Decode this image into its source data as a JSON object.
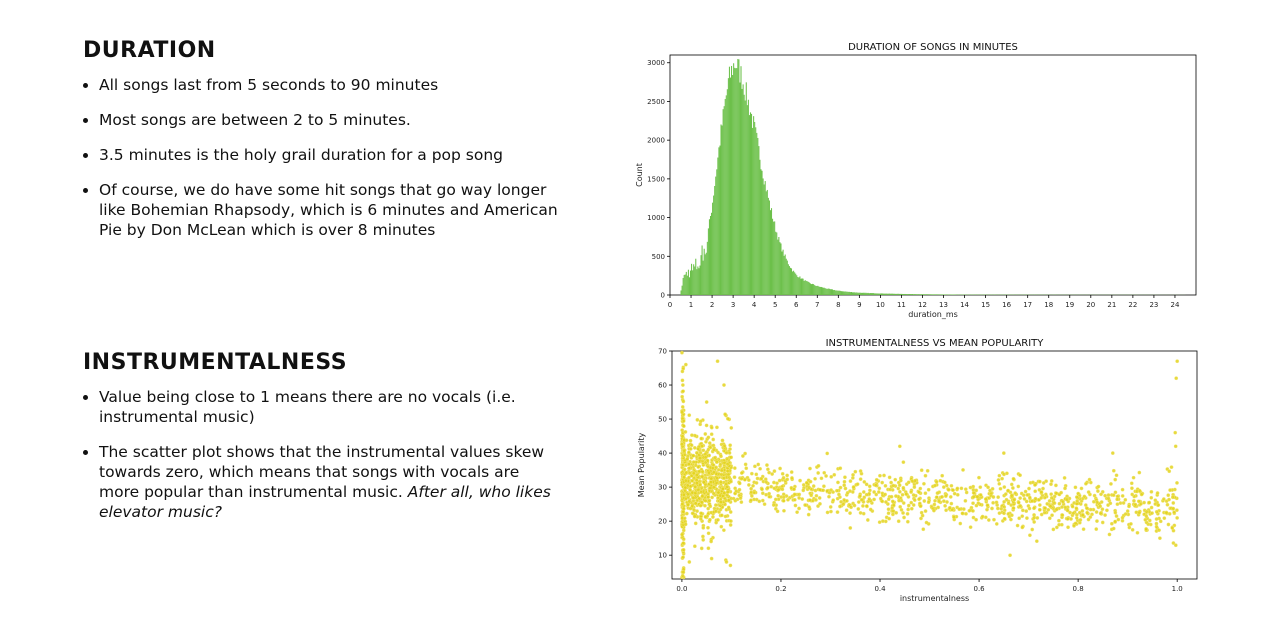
{
  "duration": {
    "heading": "DURATION",
    "bullets": [
      "All songs last from 5 seconds to 90 minutes",
      "Most songs are between 2 to 5 minutes.",
      "3.5 minutes is the holy grail duration for a pop song",
      "Of course, we do have some hit songs that go way longer like Bohemian Rhapsody, which is 6 minutes and American Pie by Don McLean which is over 8 minutes"
    ]
  },
  "instrumentalness": {
    "heading": "INSTRUMENTALNESS",
    "bullets": [
      "Value being close to 1 means there are no vocals (i.e. instrumental music)",
      "The scatter plot shows that the instrumental values skew towards zero, which means that songs with vocals are more popular than instrumental music."
    ],
    "bullet_emphasis": "After all, who likes elevator music?"
  },
  "colors": {
    "histogram_fill": "#6cc04a",
    "scatter_point": "#e3d31c",
    "scatter_edge": "#f4e98a",
    "axis": "#000000"
  },
  "chart_data": [
    {
      "type": "bar",
      "title": "DURATION OF SONGS IN MINUTES",
      "xlabel": "duration_ms",
      "ylabel": "Count",
      "xlim": [
        0,
        25
      ],
      "ylim": [
        0,
        3100
      ],
      "x_ticks": [
        0,
        1,
        2,
        3,
        4,
        5,
        6,
        7,
        8,
        9,
        10,
        11,
        12,
        13,
        14,
        15,
        16,
        17,
        18,
        19,
        20,
        21,
        22,
        23,
        24
      ],
      "y_ticks": [
        0,
        500,
        1000,
        1500,
        2000,
        2500,
        3000
      ],
      "grid": false,
      "shape_points": [
        [
          0.5,
          0
        ],
        [
          0.6,
          200
        ],
        [
          0.8,
          280
        ],
        [
          1.0,
          320
        ],
        [
          1.2,
          350
        ],
        [
          1.4,
          420
        ],
        [
          1.6,
          560
        ],
        [
          1.8,
          800
        ],
        [
          2.0,
          1150
        ],
        [
          2.2,
          1600
        ],
        [
          2.4,
          2050
        ],
        [
          2.6,
          2450
        ],
        [
          2.8,
          2780
        ],
        [
          3.0,
          2950
        ],
        [
          3.1,
          3000
        ],
        [
          3.2,
          2960
        ],
        [
          3.4,
          2830
        ],
        [
          3.6,
          2620
        ],
        [
          3.8,
          2400
        ],
        [
          4.0,
          2170
        ],
        [
          4.2,
          1900
        ],
        [
          4.4,
          1620
        ],
        [
          4.6,
          1350
        ],
        [
          4.8,
          1100
        ],
        [
          5.0,
          880
        ],
        [
          5.2,
          690
        ],
        [
          5.4,
          540
        ],
        [
          5.6,
          420
        ],
        [
          5.8,
          330
        ],
        [
          6.0,
          260
        ],
        [
          6.5,
          170
        ],
        [
          7.0,
          115
        ],
        [
          7.5,
          80
        ],
        [
          8.0,
          55
        ],
        [
          8.5,
          40
        ],
        [
          9.0,
          30
        ],
        [
          10,
          20
        ],
        [
          11,
          14
        ],
        [
          12,
          10
        ],
        [
          13,
          7
        ],
        [
          14,
          5
        ],
        [
          16,
          4
        ],
        [
          18,
          3
        ],
        [
          20,
          2
        ],
        [
          22,
          2
        ],
        [
          24,
          1
        ]
      ]
    },
    {
      "type": "scatter",
      "title": "INSTRUMENTALNESS VS MEAN POPULARITY",
      "xlabel": "instrumentalness",
      "ylabel": "Mean Popularity",
      "xlim": [
        -0.02,
        1.04
      ],
      "ylim": [
        3,
        70
      ],
      "x_ticks": [
        0.0,
        0.2,
        0.4,
        0.6,
        0.8,
        1.0
      ],
      "y_ticks": [
        10,
        20,
        30,
        40,
        50,
        60,
        70
      ],
      "grid": false,
      "clusters": [
        {
          "x_range": [
            0.0,
            0.004
          ],
          "y_mean": 32,
          "y_spread": 14,
          "count": 200
        },
        {
          "x_range": [
            0.004,
            0.1
          ],
          "y_mean": 32,
          "y_spread": 7,
          "count": 650
        },
        {
          "x_range": [
            0.1,
            0.98
          ],
          "y_mean_start": 30,
          "y_mean_end": 23,
          "y_spread": 3.5,
          "count": 950
        },
        {
          "x_range": [
            0.98,
            1.0
          ],
          "y_mean": 25,
          "y_spread": 6,
          "count": 30
        }
      ],
      "outliers": [
        [
          0.001,
          64
        ],
        [
          0.002,
          60
        ],
        [
          0.003,
          5
        ],
        [
          0.008,
          66
        ],
        [
          0.015,
          8
        ],
        [
          0.06,
          9
        ],
        [
          0.072,
          67
        ],
        [
          0.085,
          60
        ],
        [
          0.09,
          8
        ],
        [
          0.098,
          7
        ],
        [
          0.05,
          55
        ],
        [
          0.04,
          12
        ],
        [
          1.0,
          67
        ],
        [
          0.998,
          62
        ],
        [
          0.996,
          46
        ],
        [
          0.997,
          42
        ],
        [
          0.99,
          18
        ],
        [
          0.44,
          42
        ],
        [
          0.65,
          40
        ],
        [
          0.87,
          40
        ],
        [
          0.34,
          18
        ]
      ]
    }
  ]
}
